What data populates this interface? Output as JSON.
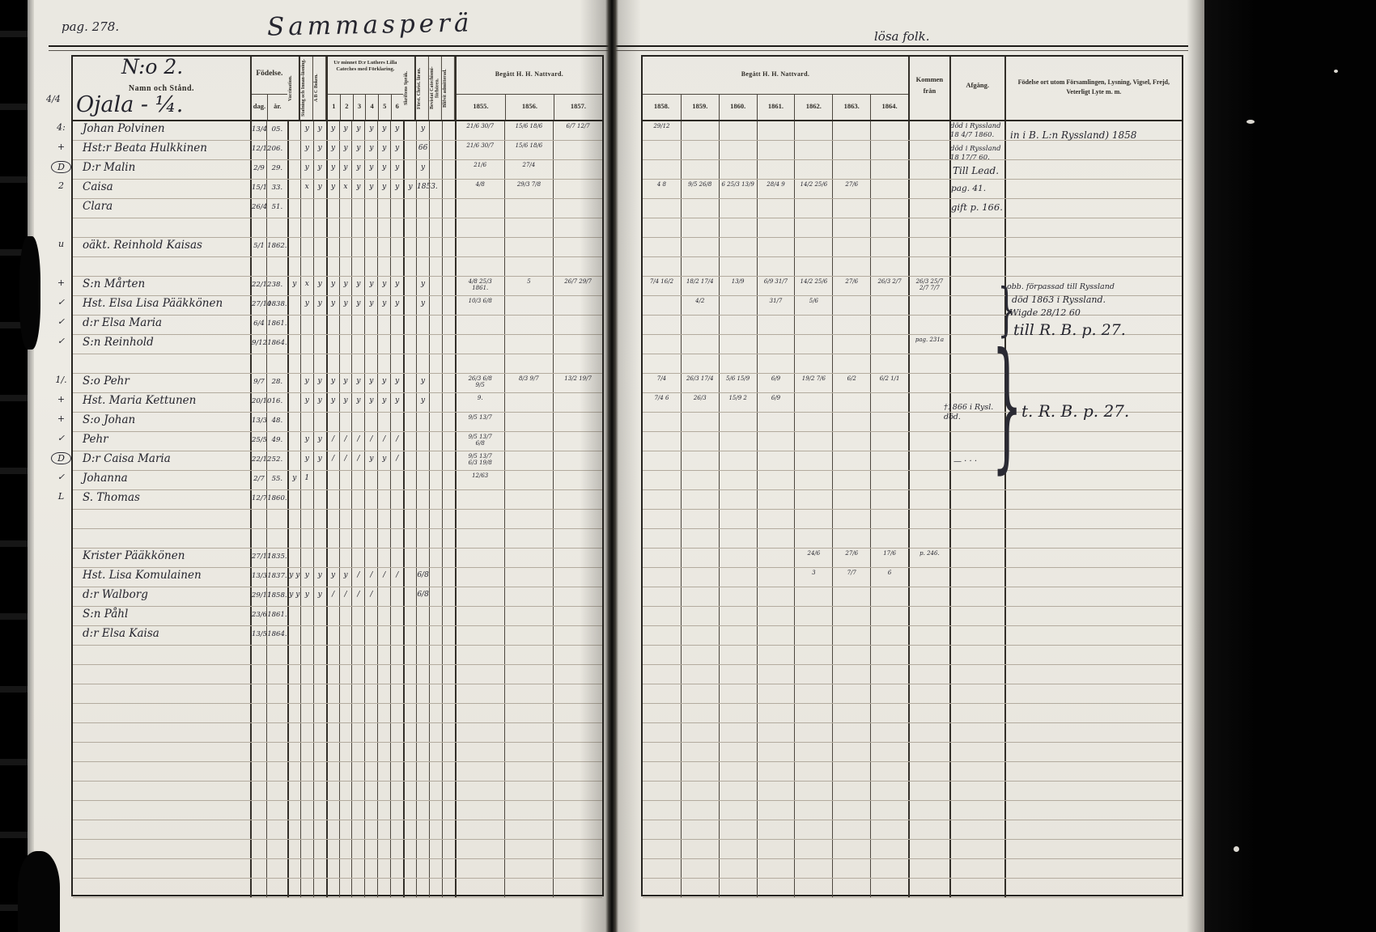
{
  "page": {
    "page_number": "pag. 278.",
    "village_title": "Sammasperä",
    "right_header_note": "lösa folk.",
    "house_number": "N:o 2.",
    "house_name": "Ojala - ¼.",
    "margin_fraction": "4/4"
  },
  "table": {
    "left": {
      "name_header": "Namn och Stånd.",
      "birth_header": "Födelse.",
      "birth_sub": [
        "dag.",
        "år."
      ],
      "vertical_headers": [
        "Vaccination.",
        "Stafning och Innan-läsning.",
        "A B C Boken."
      ],
      "cateches_header": "Ur minnet D:r Luthers Lilla Cateches med Förklaring.",
      "cateches_cols": [
        "1",
        "2",
        "3",
        "4",
        "5",
        "6"
      ],
      "vertical_headers2": [
        "Skriftens Språk.",
        "Först. Christ. läran.",
        "Bevistat Catechismi-förhören.",
        "Blifvit admitterad."
      ],
      "nattvard_header": "Begått H. H. Nattvard.",
      "nattvard_years": [
        "1855.",
        "1856.",
        "1857."
      ]
    },
    "right": {
      "nattvard_header": "Begått H. H. Nattvard.",
      "nattvard_years": [
        "1858.",
        "1859.",
        "1860.",
        "1861.",
        "1862.",
        "1863.",
        "1864."
      ],
      "kommen_header": "Kommen\nfrån",
      "afgang_header": "Afgång.",
      "remarks_header": "Födelse ort utom Församlingen, Lysning, Vigsel, Frejd, Veterligt Lyte m. m."
    }
  },
  "rows": [
    {
      "r": 0,
      "m": "4:",
      "n": "Johan Polvinen",
      "d": "13/4",
      "y": "05.",
      "s": [
        "",
        "y",
        "y",
        "y",
        "y",
        "y",
        "y",
        "y",
        "y",
        "",
        "y",
        "",
        ""
      ],
      "nl": [
        "21/6 30/7",
        "15/6 18/6",
        "6/7 12/7"
      ],
      "nr": [
        "29/12",
        "",
        "",
        "",
        "",
        "",
        ""
      ]
    },
    {
      "r": 1,
      "m": "+",
      "n": "Hst:r Beata Hulkkinen",
      "d": "12/12",
      "y": "06.",
      "s": [
        "",
        "y",
        "y",
        "y",
        "y",
        "y",
        "y",
        "y",
        "y",
        "",
        "66",
        "",
        ""
      ],
      "nl": [
        "21/6 30/7",
        "15/6 18/6",
        ""
      ],
      "nr": [
        "",
        "",
        "",
        "",
        "",
        "",
        ""
      ]
    },
    {
      "r": 2,
      "m": "D",
      "ring": true,
      "n": "D:r Malin",
      "d": "2/9",
      "y": "29.",
      "s": [
        "",
        "y",
        "y",
        "y",
        "y",
        "y",
        "y",
        "y",
        "y",
        "",
        "y",
        "",
        ""
      ],
      "nl": [
        "21/6",
        "27/4",
        ""
      ],
      "nr": [
        "",
        "",
        "",
        "",
        "",
        "",
        ""
      ]
    },
    {
      "r": 3,
      "m": "2",
      "n": "Caisa",
      "d": "15/1",
      "y": "33.",
      "s": [
        "",
        "x",
        "y",
        "y",
        "x",
        "y",
        "y",
        "y",
        "y",
        "y",
        "1853.",
        "",
        ""
      ],
      "nl": [
        "4/8",
        "29/3 7/8",
        ""
      ],
      "nr": [
        "4 8",
        "9/5 26/8",
        "6 25/3 13/9",
        "28/4 9",
        "14/2 25/6",
        "27/6",
        ""
      ]
    },
    {
      "r": 4,
      "n": "Clara",
      "d": "26/4",
      "y": "51."
    },
    {
      "r": 6,
      "m": "u",
      "n": "oäkt. Reinhold Kaisas",
      "d": "5/1",
      "y": "1862."
    },
    {
      "r": 8,
      "m": "+",
      "n": "S:n Mårten",
      "d": "22/12",
      "y": "38.",
      "s": [
        "y",
        "x",
        "y",
        "y",
        "y",
        "y",
        "y",
        "y",
        "y",
        "",
        "y",
        "",
        ""
      ],
      "nl": [
        "4/8 25/3\n1861.",
        "5",
        "26/7 29/7"
      ],
      "nr": [
        "7/4 16/2",
        "18/2 17/4",
        "13/9",
        "6/9 31/7",
        "14/2 25/6",
        "27/6",
        "26/3 2/7"
      ],
      "k": "26/3 25/7\n2/7 7/7"
    },
    {
      "r": 9,
      "m": "✓",
      "n": "Hst. Elsa Lisa Pääkkönen",
      "d": "27/10",
      "y": "1838.",
      "s": [
        "",
        "y",
        "y",
        "y",
        "y",
        "y",
        "y",
        "y",
        "y",
        "",
        "y",
        "",
        ""
      ],
      "nl": [
        "10/3 6/8",
        "",
        ""
      ],
      "nr": [
        "",
        "4/2",
        "",
        "31/7",
        "5/6",
        "",
        ""
      ]
    },
    {
      "r": 10,
      "m": "✓",
      "n": "d:r Elsa Maria",
      "d": "6/4",
      "y": "1861."
    },
    {
      "r": 11,
      "m": "✓",
      "n": "S:n Reinhold",
      "d": "9/12",
      "y": "1864.",
      "k": "pag. 231a"
    },
    {
      "r": 13,
      "m": "1/.",
      "n": "S:o Pehr",
      "d": "9/7",
      "y": "28.",
      "s": [
        "",
        "y",
        "y",
        "y",
        "y",
        "y",
        "y",
        "y",
        "y",
        "",
        "y",
        "",
        ""
      ],
      "nl": [
        "26/3 6/8\n9/5",
        "8/3 9/7",
        "13/2 19/7"
      ],
      "nr": [
        "7/4",
        "26/3 17/4",
        "5/6 15/9",
        "6/9",
        "19/2 7/6",
        "6/2",
        "6/2 1/1"
      ]
    },
    {
      "r": 14,
      "m": "+",
      "n": "Hst. Maria Kettunen",
      "d": "20/10",
      "y": "16.",
      "s": [
        "",
        "y",
        "y",
        "y",
        "y",
        "y",
        "y",
        "y",
        "y",
        "",
        "y",
        "",
        ""
      ],
      "nl": [
        "9.",
        "",
        ""
      ],
      "nr": [
        "7/4 6",
        "26/3",
        "15/9 2",
        "6/9",
        "",
        "",
        ""
      ]
    },
    {
      "r": 15,
      "m": "+",
      "n": "S:o Johan",
      "d": "13/3",
      "y": "48.",
      "nl": [
        "9/5 13/7",
        "",
        ""
      ]
    },
    {
      "r": 16,
      "m": "✓",
      "n": "Pehr",
      "d": "25/5",
      "y": "49.",
      "s": [
        "",
        "y",
        "y",
        "/",
        "/",
        "/",
        "/",
        "/",
        "/",
        "",
        "",
        "",
        ""
      ],
      "nl": [
        "9/5 13/7\n6/8",
        "",
        ""
      ]
    },
    {
      "r": 17,
      "m": "D",
      "ring": true,
      "n": "D:r Caisa Maria",
      "d": "22/12",
      "y": "52.",
      "s": [
        "",
        "y",
        "y",
        "/",
        "/",
        "/",
        "y",
        "y",
        "/",
        "",
        "",
        "",
        ""
      ],
      "nl": [
        "9/5 13/7\n6/3 19/8",
        "",
        ""
      ]
    },
    {
      "r": 18,
      "m": "✓",
      "n": "Johanna",
      "d": "2/7",
      "y": "55.",
      "s": [
        "y",
        "1",
        "",
        "",
        "",
        "",
        "",
        "",
        "",
        "",
        "",
        "",
        ""
      ],
      "nl": [
        "12/63",
        "",
        ""
      ]
    },
    {
      "r": 19,
      "m": "L",
      "n": "S. Thomas",
      "d": "12/7",
      "y": "1860."
    },
    {
      "r": 22,
      "n": "Krister Pääkkönen",
      "d": "27/11",
      "y": "1835.",
      "nr": [
        "",
        "",
        "",
        "",
        "24/6",
        "27/6",
        "17/6"
      ],
      "k": "p. 246."
    },
    {
      "r": 23,
      "n": "Hst. Lisa Komulainen",
      "d": "13/3",
      "y": "1837.",
      "s": [
        "y y",
        "y",
        "y",
        "y",
        "y",
        "/",
        "/",
        "/",
        "/",
        "",
        "6/8",
        "",
        ""
      ],
      "nr": [
        "",
        "",
        "",
        "",
        "3",
        "7/7",
        "6"
      ]
    },
    {
      "r": 24,
      "n": "d:r Walborg",
      "d": "29/11",
      "y": "1858.",
      "s": [
        "y y",
        "y",
        "y",
        "/",
        "/",
        "/",
        "/",
        "",
        "",
        "",
        "6/8",
        "",
        ""
      ]
    },
    {
      "r": 25,
      "n": "S:n Påhl",
      "d": "23/6",
      "y": "1861."
    },
    {
      "r": 26,
      "n": "d:r Elsa Kaisa",
      "d": "13/5",
      "y": "1864."
    }
  ],
  "annotations": {
    "afg_johan": "död i Ryssland\n18 4/7 1860.",
    "rem_johan": "in i B. L:n Ryssland) 1858",
    "afg_beata": "död i Ryssland\n18 17/7 60.",
    "afg_malin": "Till Lead.",
    "afg_caisa": "pag. 41.",
    "afg_clara": "gift p. 166.",
    "rem_marten1": "obb. förpassad till Ryssland",
    "rem_marten2": "död 1863 i Ryssland.",
    "rem_marten3": "Wigde 28/12 60",
    "rem_reinhold": "till R. B. p. 27.",
    "afg_johan2": "†1866 i Rysl.\ndöd.",
    "rem_johan2": "t. R. B. p. 27.",
    "dots": "— · · ·"
  },
  "decor": {
    "brace": "}"
  },
  "colors": {
    "paper": "#eae8e1",
    "ink": "#23232c",
    "print": "#2f2c27",
    "film": "#040404"
  }
}
